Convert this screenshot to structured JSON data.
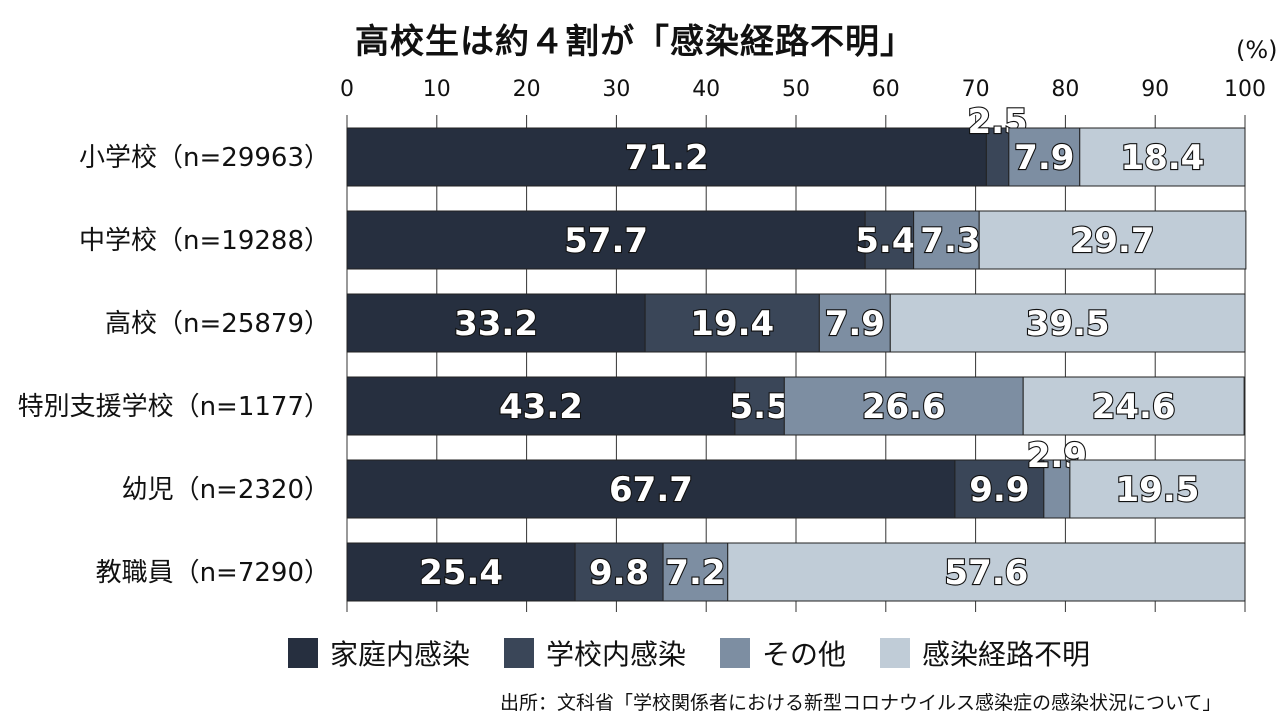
{
  "chart_data": {
    "type": "bar",
    "orientation": "horizontal",
    "stacked": true,
    "title": "高校生は約４割が「感染経路不明」",
    "unit": "(%)",
    "xlim": [
      0,
      100
    ],
    "ticks": [
      0,
      10,
      20,
      30,
      40,
      50,
      60,
      70,
      80,
      90,
      100
    ],
    "categories": [
      "小学校（n=29963）",
      "中学校（n=19288）",
      "高校（n=25879）",
      "特別支援学校（n=1177）",
      "幼児（n=2320）",
      "教職員（n=7290）"
    ],
    "series": [
      {
        "name": "家庭内感染",
        "color": "#262f3f",
        "values": [
          71.2,
          57.7,
          33.2,
          43.2,
          67.7,
          25.4
        ]
      },
      {
        "name": "学校内感染",
        "color": "#3a4658",
        "values": [
          2.5,
          5.4,
          19.4,
          5.5,
          9.9,
          9.8
        ]
      },
      {
        "name": "その他",
        "color": "#7d8ea2",
        "values": [
          7.9,
          7.3,
          7.9,
          26.6,
          2.9,
          7.2
        ]
      },
      {
        "name": "感染経路不明",
        "color": "#c0ccd7",
        "values": [
          18.4,
          29.7,
          39.5,
          24.6,
          19.5,
          57.6
        ]
      }
    ],
    "value_labels": [
      [
        "71.2",
        "2.5",
        "7.9",
        "18.4"
      ],
      [
        "57.7",
        "5.4",
        "7.3",
        "29.7"
      ],
      [
        "33.2",
        "19.4",
        "7.9",
        "39.5"
      ],
      [
        "43.2",
        "5.5",
        "26.6",
        "24.6"
      ],
      [
        "67.7",
        "9.9",
        "2.9",
        "19.5"
      ],
      [
        "25.4",
        "9.8",
        "7.2",
        "57.6"
      ]
    ],
    "legend_position": "bottom",
    "source": "出所：文科省「学校関係者における新型コロナウイルス感染症の感染状況について」"
  }
}
